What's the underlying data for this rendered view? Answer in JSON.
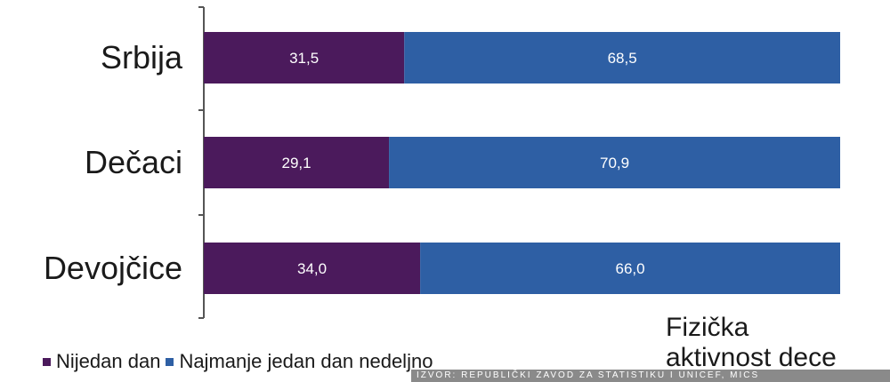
{
  "chart_data": {
    "type": "bar",
    "orientation": "horizontal",
    "stacked": true,
    "categories": [
      "Srbija",
      "Dečaci",
      "Devojčice"
    ],
    "series": [
      {
        "name": "Nijedan dan",
        "values": [
          31.5,
          29.1,
          34.0
        ],
        "labels": [
          "31,5",
          "29,1",
          "34,0"
        ],
        "color": "#4b1a5c"
      },
      {
        "name": "Najmanje jedan dan nedeljno",
        "values": [
          68.5,
          70.9,
          66.0
        ],
        "labels": [
          "68,5",
          "70,9",
          "66,0"
        ],
        "color": "#2e5fa4"
      }
    ],
    "xlim": [
      0,
      100
    ],
    "grid": false,
    "legend": "bottom-left"
  },
  "title": {
    "line1": "Fizička",
    "line2": "aktivnost dece"
  },
  "source": {
    "text": "IZVOR: REPUBLIČKI ZAVOD ZA STATISTIKU I UNICEF, MICS"
  },
  "colors": {
    "axis": "#555555",
    "text": "#1a1a1a"
  }
}
